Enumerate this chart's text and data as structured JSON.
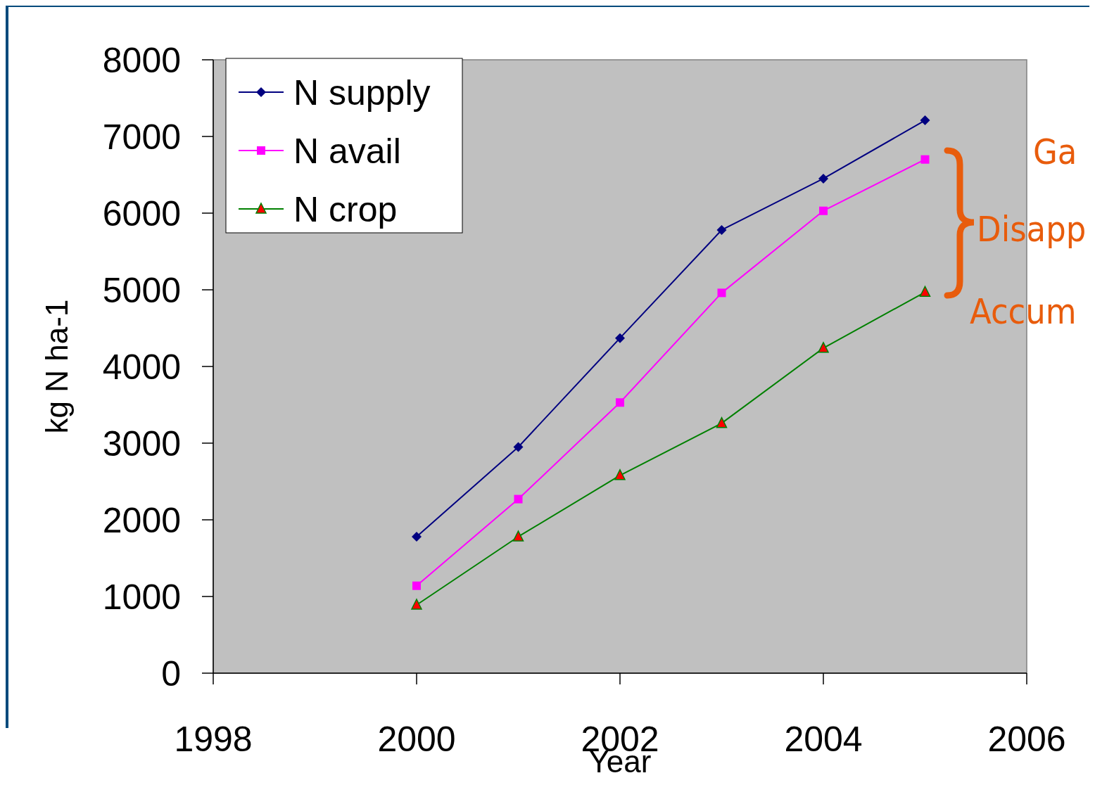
{
  "chart_data": {
    "type": "line",
    "xlabel": "Year",
    "ylabel": "kg N ha-1",
    "x": [
      2000,
      2001,
      2002,
      2003,
      2004,
      2005
    ],
    "series": [
      {
        "name": "N supply",
        "color": "#000080",
        "marker": "diamond",
        "values": [
          1780,
          2950,
          4370,
          5780,
          6450,
          7210
        ]
      },
      {
        "name": "N avail",
        "color": "#ff00ff",
        "marker": "square",
        "values": [
          1140,
          2270,
          3530,
          4960,
          6030,
          6700
        ]
      },
      {
        "name": "N crop",
        "color": "#008000",
        "marker": "triangle",
        "values": [
          890,
          1780,
          2580,
          3260,
          4240,
          4970
        ]
      }
    ],
    "xlim": [
      1998,
      2006
    ],
    "xticks": [
      1998,
      2000,
      2002,
      2004,
      2006
    ],
    "ylim": [
      0,
      8000
    ],
    "yticks": [
      0,
      1000,
      2000,
      3000,
      4000,
      5000,
      6000,
      7000,
      8000
    ],
    "grid": false,
    "legend": "top left",
    "line_style": "solid",
    "annotations": [
      "Ga",
      "Disapp",
      "Accum"
    ]
  }
}
